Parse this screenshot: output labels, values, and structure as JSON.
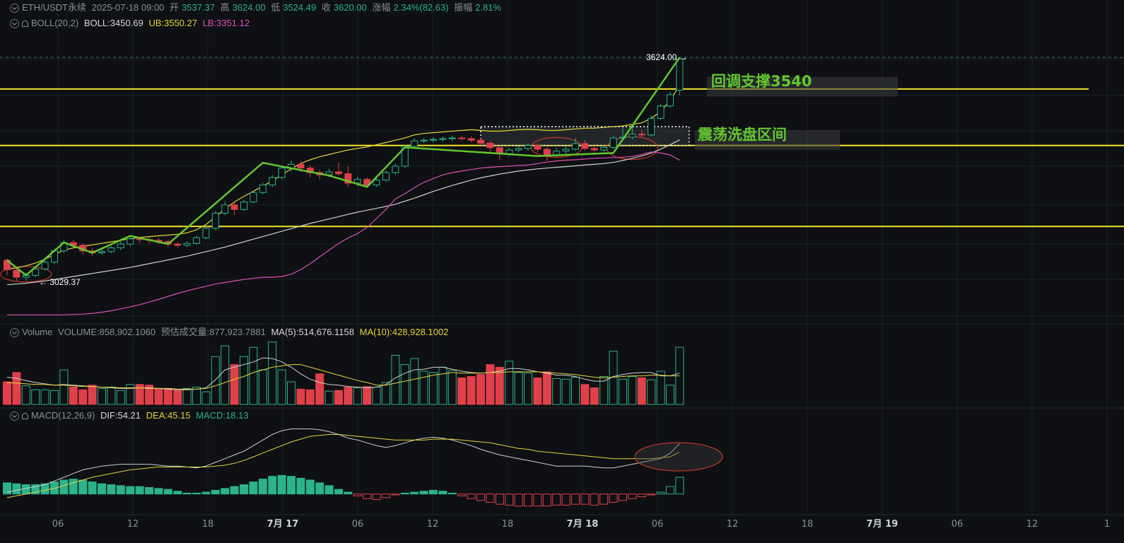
{
  "header": {
    "symbol": "ETH/USDT永续",
    "datetime": "2025-07-18 09:00",
    "open_label": "开",
    "open": "3537.37",
    "high_label": "高",
    "high": "3624.00",
    "low_label": "低",
    "low": "3524.49",
    "close_label": "收",
    "close": "3620.00",
    "change_label": "涨幅",
    "change": "2.34%(82.63)",
    "amplitude_label": "振幅",
    "amplitude": "2.81%"
  },
  "boll": {
    "label": "BOLL(20,2)",
    "mid": "BOLL:3450.69",
    "ub": "UB:3550.27",
    "lb": "LB:3351.12"
  },
  "volume": {
    "label": "Volume",
    "value": "VOLUME:858,902.1060",
    "est": "预估成交量:877,923.7881",
    "ma5": "MA(5):514,676.1158",
    "ma10": "MA(10):428,928.1002"
  },
  "macd": {
    "label": "MACD(12,26,9)",
    "dif": "DIF:54.21",
    "dea": "DEA:45.15",
    "macd": "MACD:18.13"
  },
  "colors": {
    "up": "#2bb38a",
    "down": "#e0404a",
    "boll_mid": "#cfcfcf",
    "boll_ub": "#e6d43a",
    "boll_lb": "#e04fb4",
    "annotation": "#63c62e",
    "level": "#f2e22a",
    "bg": "#0e1013"
  },
  "chart_data": [
    {
      "type": "candlestick",
      "title": "ETH/USDT永续",
      "ylim": [
        2950,
        3660
      ],
      "candles": [
        [
          3085,
          3060,
          3090,
          3045
        ],
        [
          3058,
          3040,
          3065,
          3030
        ],
        [
          3040,
          3045,
          3050,
          3030
        ],
        [
          3045,
          3062,
          3068,
          3040
        ],
        [
          3062,
          3080,
          3085,
          3058
        ],
        [
          3080,
          3110,
          3115,
          3075
        ],
        [
          3110,
          3132,
          3140,
          3105
        ],
        [
          3132,
          3125,
          3140,
          3118
        ],
        [
          3125,
          3110,
          3130,
          3100
        ],
        [
          3110,
          3105,
          3118,
          3098
        ],
        [
          3105,
          3108,
          3115,
          3100
        ],
        [
          3108,
          3118,
          3122,
          3104
        ],
        [
          3118,
          3128,
          3135,
          3112
        ],
        [
          3128,
          3142,
          3150,
          3122
        ],
        [
          3142,
          3140,
          3148,
          3132
        ],
        [
          3140,
          3138,
          3146,
          3130
        ],
        [
          3138,
          3135,
          3144,
          3128
        ],
        [
          3135,
          3128,
          3140,
          3122
        ],
        [
          3128,
          3125,
          3134,
          3118
        ],
        [
          3125,
          3130,
          3136,
          3120
        ],
        [
          3130,
          3145,
          3150,
          3126
        ],
        [
          3145,
          3170,
          3176,
          3140
        ],
        [
          3170,
          3210,
          3216,
          3165
        ],
        [
          3210,
          3232,
          3242,
          3205
        ],
        [
          3232,
          3220,
          3240,
          3205
        ],
        [
          3220,
          3240,
          3246,
          3215
        ],
        [
          3240,
          3265,
          3270,
          3236
        ],
        [
          3265,
          3285,
          3292,
          3260
        ],
        [
          3285,
          3305,
          3312,
          3280
        ],
        [
          3305,
          3330,
          3336,
          3300
        ],
        [
          3330,
          3340,
          3350,
          3320
        ],
        [
          3340,
          3330,
          3348,
          3320
        ],
        [
          3330,
          3318,
          3338,
          3305
        ],
        [
          3318,
          3312,
          3325,
          3300
        ],
        [
          3312,
          3320,
          3328,
          3305
        ],
        [
          3320,
          3315,
          3345,
          3310
        ],
        [
          3315,
          3290,
          3335,
          3280
        ],
        [
          3290,
          3300,
          3308,
          3282
        ],
        [
          3300,
          3285,
          3305,
          3278
        ],
        [
          3285,
          3298,
          3304,
          3280
        ],
        [
          3298,
          3318,
          3324,
          3294
        ],
        [
          3318,
          3335,
          3342,
          3312
        ],
        [
          3335,
          3388,
          3392,
          3330
        ],
        [
          3388,
          3402,
          3410,
          3382
        ],
        [
          3402,
          3404,
          3410,
          3396
        ],
        [
          3404,
          3406,
          3412,
          3398
        ],
        [
          3406,
          3408,
          3414,
          3400
        ],
        [
          3408,
          3410,
          3416,
          3402
        ],
        [
          3410,
          3408,
          3416,
          3402
        ],
        [
          3408,
          3404,
          3414,
          3398
        ],
        [
          3404,
          3396,
          3410,
          3390
        ],
        [
          3396,
          3384,
          3402,
          3372
        ],
        [
          3384,
          3368,
          3390,
          3352
        ],
        [
          3368,
          3378,
          3384,
          3362
        ],
        [
          3378,
          3382,
          3388,
          3372
        ],
        [
          3382,
          3390,
          3396,
          3376
        ],
        [
          3390,
          3380,
          3396,
          3372
        ],
        [
          3380,
          3365,
          3386,
          3350
        ],
        [
          3365,
          3375,
          3384,
          3360
        ],
        [
          3375,
          3380,
          3388,
          3368
        ],
        [
          3380,
          3395,
          3410,
          3376
        ],
        [
          3395,
          3382,
          3405,
          3376
        ],
        [
          3382,
          3378,
          3390,
          3370
        ],
        [
          3378,
          3385,
          3392,
          3372
        ],
        [
          3385,
          3410,
          3416,
          3380
        ],
        [
          3410,
          3412,
          3438,
          3406
        ],
        [
          3412,
          3420,
          3440,
          3406
        ],
        [
          3420,
          3418,
          3432,
          3412
        ],
        [
          3418,
          3462,
          3470,
          3415
        ],
        [
          3462,
          3495,
          3500,
          3458
        ],
        [
          3495,
          3525,
          3532,
          3490
        ],
        [
          3537,
          3620,
          3624,
          3524
        ]
      ],
      "boll_mid": [
        3020,
        3022,
        3024,
        3027,
        3030,
        3034,
        3038,
        3042,
        3046,
        3050,
        3054,
        3058,
        3062,
        3066,
        3071,
        3076,
        3081,
        3086,
        3091,
        3096,
        3102,
        3108,
        3114,
        3120,
        3127,
        3134,
        3141,
        3148,
        3155,
        3162,
        3169,
        3176,
        3183,
        3189,
        3195,
        3201,
        3207,
        3213,
        3218,
        3223,
        3228,
        3234,
        3242,
        3250,
        3259,
        3268,
        3276,
        3284,
        3291,
        3298,
        3304,
        3309,
        3314,
        3318,
        3322,
        3325,
        3328,
        3330,
        3332,
        3334,
        3336,
        3338,
        3340,
        3342,
        3345,
        3350,
        3356,
        3362,
        3370,
        3380,
        3392,
        3405
      ],
      "boll_ub": [
        3060,
        3065,
        3070,
        3078,
        3088,
        3100,
        3112,
        3118,
        3122,
        3126,
        3130,
        3134,
        3138,
        3142,
        3146,
        3148,
        3150,
        3152,
        3154,
        3158,
        3166,
        3180,
        3200,
        3222,
        3240,
        3255,
        3268,
        3282,
        3296,
        3312,
        3328,
        3342,
        3352,
        3360,
        3366,
        3372,
        3378,
        3382,
        3386,
        3392,
        3398,
        3404,
        3410,
        3418,
        3422,
        3424,
        3426,
        3428,
        3430,
        3432,
        3430,
        3428,
        3428,
        3430,
        3432,
        3433,
        3432,
        3430,
        3430,
        3432,
        3434,
        3436,
        3436,
        3438,
        3440,
        3442,
        3446,
        3450,
        3462,
        3480,
        3510,
        3550
      ],
      "boll_lb": [
        2940,
        2940,
        2940,
        2940,
        2940,
        2940,
        2940,
        2941,
        2942,
        2944,
        2947,
        2951,
        2956,
        2961,
        2967,
        2974,
        2981,
        2989,
        2997,
        3004,
        3010,
        3016,
        3022,
        3026,
        3030,
        3034,
        3037,
        3040,
        3040,
        3042,
        3048,
        3060,
        3076,
        3094,
        3112,
        3130,
        3144,
        3156,
        3172,
        3196,
        3220,
        3248,
        3262,
        3278,
        3292,
        3302,
        3312,
        3318,
        3322,
        3326,
        3330,
        3332,
        3334,
        3335,
        3337,
        3338,
        3342,
        3346,
        3349,
        3351,
        3352,
        3354,
        3356,
        3357,
        3358,
        3359,
        3361,
        3366,
        3373,
        3370,
        3365,
        3351
      ],
      "annotations": [
        {
          "text": "回调支撑3540"
        },
        {
          "text": "震荡洗盘区间"
        },
        {
          "text": "3624.00"
        },
        {
          "text": "3029.37"
        }
      ],
      "levels": [
        3540,
        3390,
        3175
      ],
      "zigzag": [
        [
          0,
          3085
        ],
        [
          2,
          3045
        ],
        [
          6,
          3132
        ],
        [
          9,
          3105
        ],
        [
          13,
          3150
        ],
        [
          17,
          3128
        ],
        [
          27,
          3344
        ],
        [
          34,
          3310
        ],
        [
          38,
          3280
        ],
        [
          42,
          3385
        ],
        [
          56,
          3362
        ],
        [
          64,
          3370
        ],
        [
          71,
          3624
        ]
      ],
      "x_ticks": [
        "06",
        "12",
        "18",
        "7月 17",
        "06",
        "12",
        "18",
        "7月 18",
        "06",
        "12",
        "18",
        "7月 19",
        "06",
        "12",
        "1"
      ]
    },
    {
      "type": "bar",
      "title": "Volume",
      "values": [
        340,
        480,
        280,
        220,
        220,
        210,
        520,
        260,
        220,
        290,
        240,
        260,
        210,
        300,
        300,
        290,
        240,
        240,
        210,
        240,
        260,
        190,
        720,
        880,
        600,
        720,
        860,
        520,
        940,
        520,
        340,
        230,
        220,
        460,
        200,
        210,
        260,
        250,
        270,
        260,
        330,
        740,
        600,
        690,
        500,
        480,
        560,
        510,
        400,
        420,
        450,
        600,
        560,
        650,
        480,
        470,
        400,
        490,
        390,
        380,
        410,
        300,
        250,
        420,
        800,
        380,
        420,
        400,
        370,
        500,
        290,
        860
      ],
      "ma5": [
        410,
        390,
        360,
        330,
        310,
        290,
        300,
        290,
        280,
        270,
        260,
        250,
        240,
        240,
        250,
        250,
        240,
        230,
        220,
        220,
        230,
        250,
        370,
        520,
        560,
        600,
        640,
        700,
        690,
        640,
        560,
        460,
        380,
        330,
        300,
        290,
        270,
        260,
        250,
        260,
        300,
        400,
        470,
        520,
        530,
        560,
        560,
        530,
        500,
        480,
        470,
        480,
        500,
        540,
        540,
        520,
        490,
        470,
        440,
        440,
        420,
        380,
        350,
        350,
        420,
        450,
        470,
        480,
        480,
        430,
        430,
        470
      ],
      "ma10": [
        330,
        320,
        310,
        300,
        300,
        290,
        290,
        280,
        270,
        270,
        260,
        260,
        250,
        250,
        250,
        240,
        240,
        240,
        230,
        230,
        230,
        240,
        280,
        330,
        380,
        420,
        480,
        520,
        560,
        580,
        600,
        600,
        560,
        520,
        480,
        440,
        400,
        360,
        330,
        290,
        290,
        320,
        350,
        380,
        410,
        440,
        460,
        480,
        470,
        470,
        470,
        480,
        480,
        490,
        490,
        490,
        490,
        480,
        470,
        460,
        450,
        430,
        410,
        400,
        410,
        420,
        430,
        430,
        440,
        440,
        430,
        430
      ],
      "ylim": [
        0,
        1000
      ]
    },
    {
      "type": "bar",
      "title": "MACD(12,26,9)",
      "macd": [
        12,
        11,
        10,
        10,
        11,
        13,
        15,
        16,
        15,
        13,
        11,
        10,
        9,
        8,
        8,
        7,
        6,
        5,
        3,
        1,
        1,
        2,
        4,
        6,
        8,
        10,
        13,
        16,
        19,
        20,
        19,
        17,
        15,
        12,
        9,
        5,
        2,
        -2,
        -5,
        -6,
        -4,
        -1,
        1,
        2,
        3,
        4,
        3,
        1,
        -2,
        -5,
        -7,
        -9,
        -11,
        -12,
        -13,
        -13,
        -13,
        -13,
        -12,
        -12,
        -11,
        -11,
        -12,
        -11,
        -9,
        -7,
        -5,
        -3,
        -1,
        2,
        8,
        18
      ],
      "dif": [
        2,
        4,
        6,
        8,
        10,
        14,
        18,
        22,
        26,
        28,
        30,
        31,
        32,
        32,
        32,
        32,
        31,
        30,
        30,
        29,
        28,
        30,
        34,
        38,
        42,
        46,
        52,
        58,
        64,
        68,
        70,
        70,
        70,
        69,
        67,
        64,
        60,
        58,
        55,
        52,
        50,
        52,
        55,
        58,
        60,
        61,
        60,
        58,
        55,
        52,
        48,
        45,
        42,
        40,
        38,
        36,
        34,
        32,
        30,
        30,
        30,
        30,
        29,
        28,
        28,
        30,
        32,
        34,
        36,
        38,
        44,
        54
      ],
      "dea": [
        -4,
        -2,
        0,
        2,
        4,
        6,
        9,
        12,
        15,
        18,
        20,
        22,
        24,
        26,
        27,
        28,
        29,
        29,
        29,
        29,
        29,
        29,
        30,
        31,
        33,
        36,
        40,
        44,
        48,
        52,
        56,
        59,
        62,
        63,
        64,
        64,
        63,
        62,
        61,
        60,
        59,
        58,
        58,
        58,
        58,
        59,
        59,
        59,
        58,
        57,
        56,
        55,
        53,
        51,
        49,
        48,
        46,
        45,
        44,
        43,
        42,
        41,
        40,
        39,
        38,
        38,
        38,
        38,
        38,
        39,
        40,
        45.15
      ],
      "ylim": [
        -20,
        75
      ]
    }
  ]
}
